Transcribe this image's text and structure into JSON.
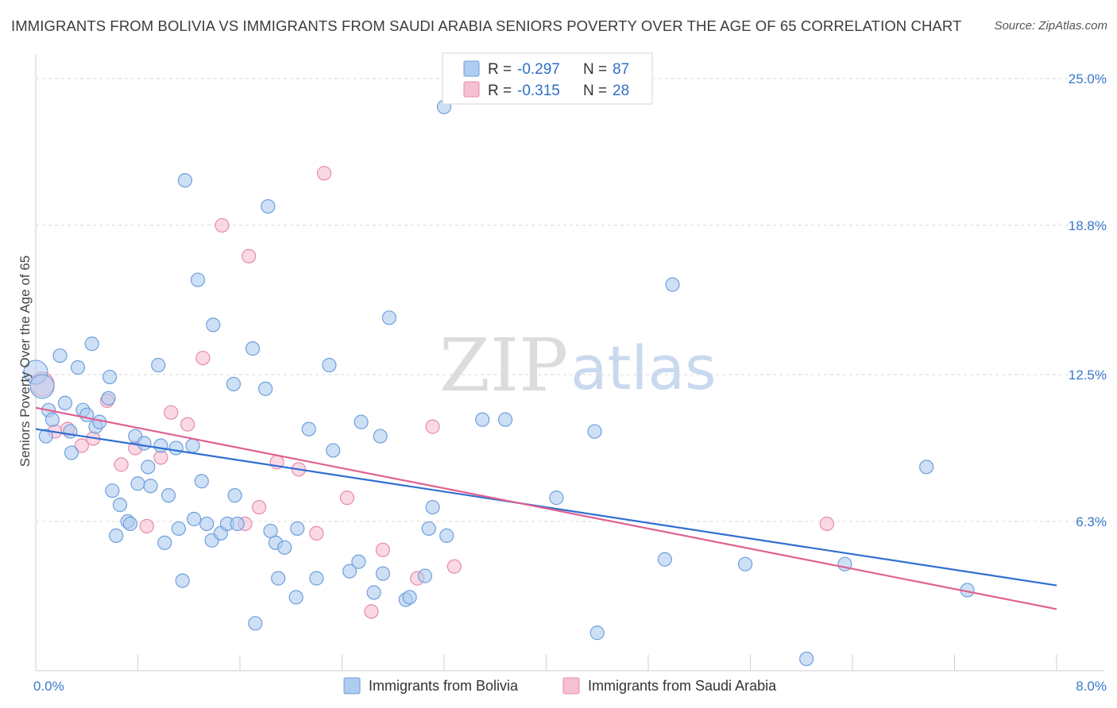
{
  "title": "IMMIGRANTS FROM BOLIVIA VS IMMIGRANTS FROM SAUDI ARABIA SENIORS POVERTY OVER THE AGE OF 65 CORRELATION CHART",
  "source": "Source: ZipAtlas.com",
  "watermark": {
    "zip": "ZIP",
    "atlas": "atlas"
  },
  "colors": {
    "bolivia_fill": "#aecbf0",
    "bolivia_stroke": "#6f9fdb",
    "bolivia_line": "#2f6fd0",
    "saudi_fill": "#f7c0d2",
    "saudi_stroke": "#e48bab",
    "saudi_line": "#e0608f",
    "tick_label": "#3a78c9",
    "grid": "#d8d8d8"
  },
  "legend": {
    "r_label": "R =",
    "n_label": "N =",
    "entries": [
      {
        "r": "-0.297",
        "n": "87"
      },
      {
        "r": "-0.315",
        "n": "28"
      }
    ]
  },
  "chart_data": {
    "type": "scatter",
    "title": "IMMIGRANTS FROM BOLIVIA VS IMMIGRANTS FROM SAUDI ARABIA SENIORS POVERTY OVER THE AGE OF 65 CORRELATION CHART",
    "xlabel": "",
    "ylabel": "Seniors Poverty Over the Age of 65",
    "xlim": [
      0,
      8
    ],
    "ylim": [
      0,
      25.7
    ],
    "x_tick_labels": [
      "0.0%",
      "8.0%"
    ],
    "y_ticks": [
      6.3,
      12.5,
      18.8,
      25.0
    ],
    "y_tick_labels": [
      "6.3%",
      "12.5%",
      "18.8%",
      "25.0%"
    ],
    "grid": true,
    "legend_position": "top-center",
    "series": [
      {
        "name": "Immigrants from Bolivia",
        "trend": {
          "x": [
            0,
            8
          ],
          "y": [
            10.2,
            3.6
          ]
        },
        "points": [
          [
            0.0,
            12.6
          ],
          [
            0.05,
            12.0
          ],
          [
            0.1,
            11.0
          ],
          [
            0.13,
            10.6
          ],
          [
            0.19,
            13.3
          ],
          [
            0.23,
            11.3
          ],
          [
            0.27,
            10.1
          ],
          [
            0.28,
            9.2
          ],
          [
            0.33,
            12.8
          ],
          [
            0.37,
            11.0
          ],
          [
            0.4,
            10.8
          ],
          [
            0.44,
            13.8
          ],
          [
            0.47,
            10.3
          ],
          [
            0.5,
            10.5
          ],
          [
            0.57,
            11.5
          ],
          [
            0.58,
            12.4
          ],
          [
            0.6,
            7.6
          ],
          [
            0.63,
            5.7
          ],
          [
            0.66,
            7.0
          ],
          [
            0.72,
            6.3
          ],
          [
            0.74,
            6.2
          ],
          [
            0.78,
            9.9
          ],
          [
            0.8,
            7.9
          ],
          [
            0.85,
            9.6
          ],
          [
            0.88,
            8.6
          ],
          [
            0.9,
            7.8
          ],
          [
            0.96,
            12.9
          ],
          [
            0.98,
            9.5
          ],
          [
            1.01,
            5.4
          ],
          [
            1.04,
            7.4
          ],
          [
            1.1,
            9.4
          ],
          [
            1.12,
            6.0
          ],
          [
            1.15,
            3.8
          ],
          [
            1.17,
            20.7
          ],
          [
            1.23,
            9.5
          ],
          [
            1.24,
            6.4
          ],
          [
            1.27,
            16.5
          ],
          [
            1.3,
            8.0
          ],
          [
            1.34,
            6.2
          ],
          [
            1.38,
            5.5
          ],
          [
            1.39,
            14.6
          ],
          [
            1.45,
            5.8
          ],
          [
            1.5,
            6.2
          ],
          [
            1.55,
            12.1
          ],
          [
            1.56,
            7.4
          ],
          [
            1.58,
            6.2
          ],
          [
            1.7,
            13.6
          ],
          [
            1.72,
            2.0
          ],
          [
            1.8,
            11.9
          ],
          [
            1.82,
            19.6
          ],
          [
            1.84,
            5.9
          ],
          [
            1.88,
            5.4
          ],
          [
            1.9,
            3.9
          ],
          [
            1.95,
            5.2
          ],
          [
            2.04,
            3.1
          ],
          [
            2.05,
            6.0
          ],
          [
            2.14,
            10.2
          ],
          [
            2.2,
            3.9
          ],
          [
            2.3,
            12.9
          ],
          [
            2.33,
            9.3
          ],
          [
            2.46,
            4.2
          ],
          [
            2.53,
            4.6
          ],
          [
            2.55,
            10.5
          ],
          [
            2.65,
            3.3
          ],
          [
            2.7,
            9.9
          ],
          [
            2.72,
            4.1
          ],
          [
            2.77,
            14.9
          ],
          [
            2.9,
            3.0
          ],
          [
            2.93,
            3.1
          ],
          [
            3.05,
            4.0
          ],
          [
            3.08,
            6.0
          ],
          [
            3.11,
            6.9
          ],
          [
            3.22,
            5.7
          ],
          [
            3.2,
            23.8
          ],
          [
            3.5,
            10.6
          ],
          [
            3.68,
            10.6
          ],
          [
            4.08,
            7.3
          ],
          [
            4.38,
            10.1
          ],
          [
            4.4,
            1.6
          ],
          [
            4.93,
            4.7
          ],
          [
            4.99,
            16.3
          ],
          [
            5.56,
            4.5
          ],
          [
            6.04,
            0.5
          ],
          [
            6.34,
            4.5
          ],
          [
            6.98,
            8.6
          ],
          [
            7.3,
            3.4
          ],
          [
            0.08,
            9.9
          ]
        ]
      },
      {
        "name": "Immigrants from Saudi Arabia",
        "trend": {
          "x": [
            0,
            8
          ],
          "y": [
            11.1,
            2.6
          ]
        },
        "points": [
          [
            0.05,
            12.1
          ],
          [
            0.15,
            10.1
          ],
          [
            0.25,
            10.2
          ],
          [
            0.36,
            9.5
          ],
          [
            0.45,
            9.8
          ],
          [
            0.56,
            11.4
          ],
          [
            0.67,
            8.7
          ],
          [
            0.78,
            9.4
          ],
          [
            0.87,
            6.1
          ],
          [
            0.98,
            9.0
          ],
          [
            1.06,
            10.9
          ],
          [
            1.19,
            10.4
          ],
          [
            1.31,
            13.2
          ],
          [
            1.46,
            18.8
          ],
          [
            1.64,
            6.2
          ],
          [
            1.67,
            17.5
          ],
          [
            1.75,
            6.9
          ],
          [
            1.89,
            8.8
          ],
          [
            2.06,
            8.5
          ],
          [
            2.2,
            5.8
          ],
          [
            2.26,
            21.0
          ],
          [
            2.44,
            7.3
          ],
          [
            2.63,
            2.5
          ],
          [
            2.72,
            5.1
          ],
          [
            2.99,
            3.9
          ],
          [
            3.11,
            10.3
          ],
          [
            3.28,
            4.4
          ],
          [
            6.2,
            6.2
          ]
        ]
      }
    ]
  },
  "bottom_legend": [
    "Immigrants from Bolivia",
    "Immigrants from Saudi Arabia"
  ]
}
